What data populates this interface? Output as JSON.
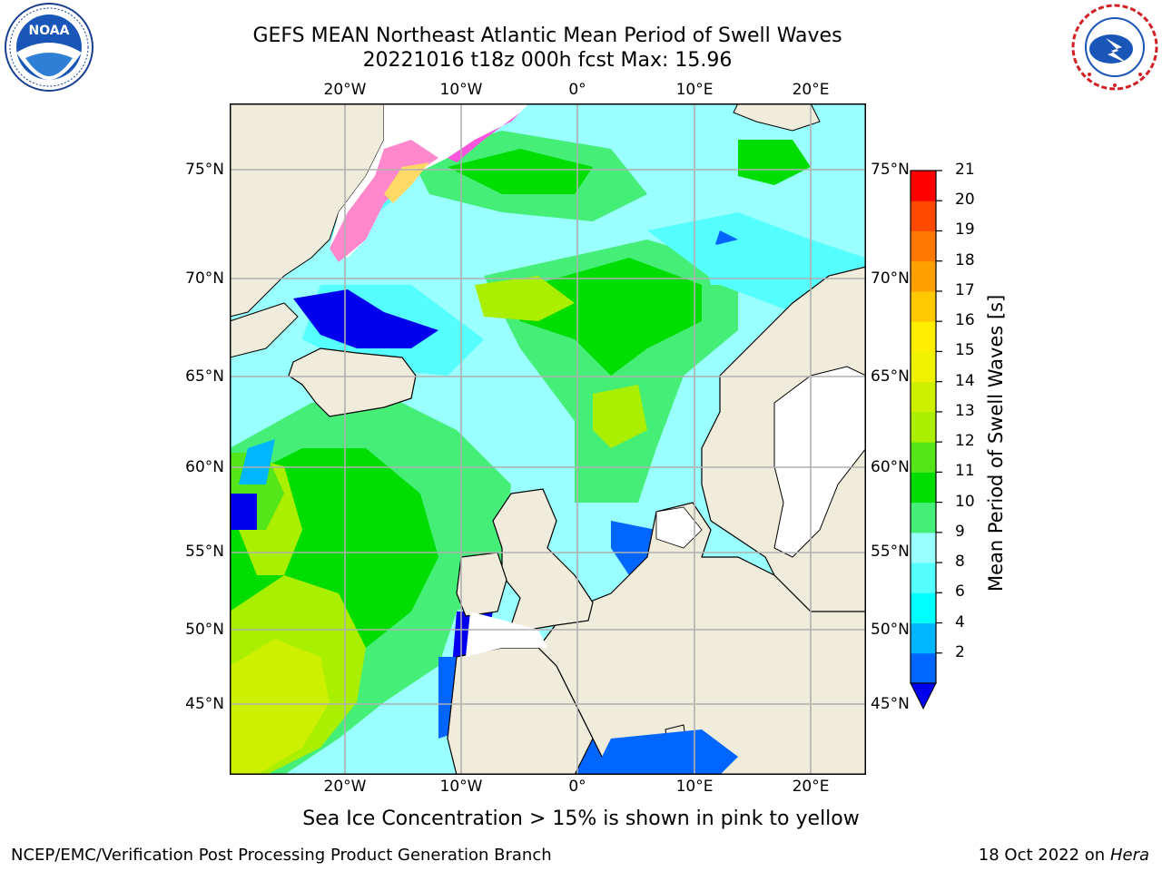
{
  "title": {
    "line1": "GEFS MEAN Northeast Atlantic Mean Period of Swell Waves",
    "line2": "20221016 t18z 000h fcst   Max: 15.96"
  },
  "logos": {
    "left": {
      "name": "NOAA",
      "text": "NOAA",
      "ring_text": "NATIONAL OCEANIC AND ATMOSPHERIC ADMINISTRATION · U.S. DEPARTMENT OF COMMERCE"
    },
    "right": {
      "name": "NWS",
      "ring_text": "NATIONAL WEATHER SERVICE"
    }
  },
  "map": {
    "lon_ticks": [
      "20°W",
      "10°W",
      "0°",
      "10°E",
      "20°E"
    ],
    "lat_ticks": [
      "75°N",
      "70°N",
      "65°N",
      "60°N",
      "55°N",
      "50°N",
      "45°N"
    ],
    "colors": {
      "land": "#efecdc",
      "coast": "#000000",
      "grid": "#b0b0b0",
      "no_data": "#ffffff"
    }
  },
  "colorbar": {
    "label": "Mean Period of Swell Waves [s]",
    "ticks": [
      "21",
      "20",
      "19",
      "18",
      "17",
      "16",
      "15",
      "14",
      "13",
      "12",
      "11",
      "10",
      "9",
      "8",
      "6",
      "4",
      "2"
    ],
    "levels": [
      2,
      4,
      6,
      8,
      9,
      10,
      11,
      12,
      13,
      14,
      15,
      16,
      17,
      18,
      19,
      20,
      21
    ],
    "colors": [
      "#0066ff",
      "#00b7ff",
      "#00ffff",
      "#55ffff",
      "#99ffff",
      "#44ee77",
      "#00dd00",
      "#55e61a",
      "#aaee00",
      "#ccf000",
      "#eef200",
      "#ffee00",
      "#ffc800",
      "#ffa000",
      "#ff7800",
      "#ff4800",
      "#ff0000"
    ],
    "extend_color": "#0000ee",
    "max_value": 15.96
  },
  "note": "Sea Ice Concentration > 15% is shown in pink to yellow",
  "footer": {
    "left": "NCEP/EMC/Verification Post Processing Product Generation Branch",
    "right_prefix": "18 Oct 2022 on ",
    "right_machine": "Hera"
  }
}
